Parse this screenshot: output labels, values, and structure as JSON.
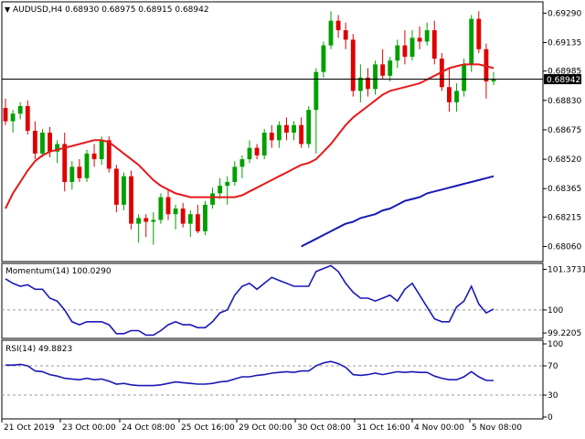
{
  "chart_data": [
    {
      "type": "candlestick",
      "title": "AUDUSD,H4  0.68930 0.68975 0.68915 0.68942",
      "symbol_arrow": "▼",
      "last_price_label": "0.68942",
      "last_price": 0.68942,
      "ylim": [
        0.6799,
        0.6934
      ],
      "yticks": [
        "0.69290",
        "0.69135",
        "0.68985",
        "0.68830",
        "0.68675",
        "0.68520",
        "0.68365",
        "0.68215",
        "0.68060"
      ],
      "colors": {
        "bull": "#00a000",
        "bear": "#e00000",
        "ma_fast": "#e41a1a",
        "ma_slow": "#1a1ab4",
        "last_price_line": "#000000"
      },
      "candles": [
        [
          0.6879,
          0.6884,
          0.687,
          0.6872
        ],
        [
          0.6872,
          0.6878,
          0.6866,
          0.6876
        ],
        [
          0.6876,
          0.6882,
          0.6873,
          0.688
        ],
        [
          0.688,
          0.6883,
          0.6865,
          0.6867
        ],
        [
          0.6867,
          0.6872,
          0.6852,
          0.6855
        ],
        [
          0.6855,
          0.6868,
          0.6853,
          0.6866
        ],
        [
          0.6866,
          0.6869,
          0.6853,
          0.6856
        ],
        [
          0.6856,
          0.6862,
          0.685,
          0.686
        ],
        [
          0.686,
          0.6866,
          0.6835,
          0.684
        ],
        [
          0.684,
          0.6851,
          0.6836,
          0.6848
        ],
        [
          0.6848,
          0.6852,
          0.684,
          0.6842
        ],
        [
          0.6842,
          0.6857,
          0.684,
          0.6855
        ],
        [
          0.6855,
          0.686,
          0.6848,
          0.6852
        ],
        [
          0.6852,
          0.6864,
          0.6849,
          0.6862
        ],
        [
          0.6862,
          0.6864,
          0.6845,
          0.6847
        ],
        [
          0.6847,
          0.6849,
          0.6824,
          0.6828
        ],
        [
          0.6828,
          0.6845,
          0.6825,
          0.6843
        ],
        [
          0.6843,
          0.6846,
          0.6815,
          0.6818
        ],
        [
          0.6818,
          0.6823,
          0.6808,
          0.6821
        ],
        [
          0.6821,
          0.6823,
          0.6811,
          0.6819
        ],
        [
          0.6819,
          0.6824,
          0.6807,
          0.682
        ],
        [
          0.682,
          0.6834,
          0.6818,
          0.6832
        ],
        [
          0.6832,
          0.6836,
          0.682,
          0.6823
        ],
        [
          0.6823,
          0.6828,
          0.6815,
          0.6826
        ],
        [
          0.6826,
          0.6829,
          0.6816,
          0.6818
        ],
        [
          0.6818,
          0.6825,
          0.6811,
          0.6823
        ],
        [
          0.6823,
          0.6828,
          0.6813,
          0.6814
        ],
        [
          0.6814,
          0.683,
          0.6812,
          0.6828
        ],
        [
          0.6828,
          0.6837,
          0.6826,
          0.6834
        ],
        [
          0.6834,
          0.6842,
          0.6831,
          0.6838
        ],
        [
          0.6838,
          0.6843,
          0.6828,
          0.684
        ],
        [
          0.684,
          0.6851,
          0.6838,
          0.6848
        ],
        [
          0.6848,
          0.6854,
          0.6842,
          0.6852
        ],
        [
          0.6852,
          0.6862,
          0.685,
          0.6858
        ],
        [
          0.6858,
          0.686,
          0.6852,
          0.6854
        ],
        [
          0.6854,
          0.6868,
          0.6852,
          0.6866
        ],
        [
          0.6866,
          0.687,
          0.6858,
          0.6862
        ],
        [
          0.6862,
          0.6872,
          0.6858,
          0.687
        ],
        [
          0.687,
          0.6874,
          0.6862,
          0.6866
        ],
        [
          0.6866,
          0.6872,
          0.6862,
          0.687
        ],
        [
          0.687,
          0.6874,
          0.6858,
          0.686
        ],
        [
          0.686,
          0.688,
          0.6858,
          0.6878
        ],
        [
          0.6878,
          0.69,
          0.6855,
          0.6898
        ],
        [
          0.6898,
          0.6914,
          0.6895,
          0.6912
        ],
        [
          0.6912,
          0.693,
          0.691,
          0.6925
        ],
        [
          0.6925,
          0.6928,
          0.6916,
          0.692
        ],
        [
          0.692,
          0.6924,
          0.691,
          0.6915
        ],
        [
          0.6915,
          0.6918,
          0.6885,
          0.6888
        ],
        [
          0.6888,
          0.6902,
          0.6882,
          0.6895
        ],
        [
          0.6895,
          0.69,
          0.6885,
          0.6889
        ],
        [
          0.6889,
          0.6904,
          0.6886,
          0.6902
        ],
        [
          0.6902,
          0.691,
          0.6894,
          0.6896
        ],
        [
          0.6896,
          0.6906,
          0.6893,
          0.6904
        ],
        [
          0.6904,
          0.6915,
          0.69,
          0.6912
        ],
        [
          0.6912,
          0.692,
          0.6902,
          0.6906
        ],
        [
          0.6906,
          0.692,
          0.6904,
          0.6916
        ],
        [
          0.6916,
          0.6922,
          0.691,
          0.6914
        ],
        [
          0.6914,
          0.6924,
          0.6912,
          0.692
        ],
        [
          0.692,
          0.6925,
          0.6902,
          0.6905
        ],
        [
          0.6905,
          0.6908,
          0.6888,
          0.689
        ],
        [
          0.689,
          0.69,
          0.6877,
          0.6882
        ],
        [
          0.6882,
          0.6892,
          0.6877,
          0.6888
        ],
        [
          0.6888,
          0.6905,
          0.6885,
          0.6902
        ],
        [
          0.6902,
          0.6928,
          0.6898,
          0.6926
        ],
        [
          0.6926,
          0.693,
          0.6908,
          0.691
        ],
        [
          0.691,
          0.6913,
          0.6884,
          0.6893
        ],
        [
          0.6893,
          0.6898,
          0.6891,
          0.6894
        ]
      ],
      "ma_fast": [
        0.6826,
        0.6834,
        0.684,
        0.6846,
        0.6851,
        0.6854,
        0.6856,
        0.6857,
        0.6858,
        0.6859,
        0.686,
        0.6861,
        0.6862,
        0.6862,
        0.6861,
        0.6858,
        0.6855,
        0.6852,
        0.6849,
        0.6845,
        0.6841,
        0.6838,
        0.6836,
        0.6834,
        0.6833,
        0.6832,
        0.6832,
        0.6832,
        0.6832,
        0.6832,
        0.6832,
        0.6832,
        0.6833,
        0.6835,
        0.6837,
        0.6839,
        0.6841,
        0.6843,
        0.6845,
        0.6847,
        0.6849,
        0.685,
        0.6852,
        0.6856,
        0.686,
        0.6865,
        0.687,
        0.6874,
        0.6877,
        0.688,
        0.6883,
        0.6886,
        0.6888,
        0.6889,
        0.689,
        0.6891,
        0.6892,
        0.6894,
        0.6896,
        0.6898,
        0.69,
        0.6901,
        0.6902,
        0.6902,
        0.6902,
        0.6901,
        0.69
      ],
      "ma_slow": [
        null,
        null,
        null,
        null,
        null,
        null,
        null,
        null,
        null,
        null,
        null,
        null,
        null,
        null,
        null,
        null,
        null,
        null,
        null,
        null,
        null,
        null,
        null,
        null,
        null,
        null,
        null,
        null,
        null,
        null,
        null,
        null,
        null,
        null,
        null,
        null,
        null,
        null,
        null,
        null,
        0.6806,
        0.6808,
        0.681,
        0.6812,
        0.6814,
        0.6816,
        0.6818,
        0.6819,
        0.6821,
        0.6822,
        0.6823,
        0.6825,
        0.6826,
        0.6828,
        0.683,
        0.6831,
        0.6832,
        0.6834,
        0.6835,
        0.6836,
        0.6837,
        0.6838,
        0.6839,
        0.684,
        0.6841,
        0.6842,
        0.6843
      ]
    },
    {
      "type": "line",
      "title": "Momentum(14) 100.0290",
      "ylim": [
        99.1,
        101.45
      ],
      "yticks": [
        "101.3731",
        "100",
        "99.2205"
      ],
      "reference_line": 100,
      "color": "#1a1ab4",
      "values": [
        101.05,
        100.9,
        100.8,
        100.85,
        100.7,
        100.7,
        100.4,
        100.3,
        100.0,
        99.6,
        99.5,
        99.6,
        99.6,
        99.6,
        99.5,
        99.2,
        99.2,
        99.3,
        99.3,
        99.15,
        99.15,
        99.3,
        99.5,
        99.6,
        99.5,
        99.5,
        99.4,
        99.4,
        99.6,
        99.9,
        100.0,
        100.5,
        100.8,
        100.9,
        100.7,
        100.9,
        101.1,
        101.0,
        100.9,
        100.8,
        100.8,
        100.8,
        101.3,
        101.4,
        101.5,
        101.3,
        100.9,
        100.6,
        100.4,
        100.4,
        100.3,
        100.4,
        100.5,
        100.3,
        100.7,
        100.9,
        100.5,
        100.1,
        99.7,
        99.6,
        99.6,
        100.1,
        100.3,
        100.8,
        100.2,
        99.9,
        100.03
      ]
    },
    {
      "type": "line",
      "title": "RSI(14) 49.8823",
      "ylim": [
        0,
        100
      ],
      "yticks": [
        "100",
        "70",
        "30",
        "0"
      ],
      "reference_lines": [
        70,
        30
      ],
      "color": "#1a1ab4",
      "values": [
        71,
        71,
        72,
        70,
        63,
        62,
        58,
        56,
        53,
        52,
        51,
        53,
        51,
        52,
        49,
        45,
        46,
        44,
        43,
        43,
        43,
        44,
        46,
        48,
        47,
        46,
        45,
        45,
        46,
        48,
        49,
        52,
        55,
        55,
        57,
        58,
        60,
        61,
        62,
        61,
        63,
        63,
        70,
        74,
        76,
        73,
        68,
        58,
        57,
        58,
        60,
        58,
        60,
        62,
        61,
        62,
        61,
        61,
        56,
        53,
        51,
        51,
        55,
        62,
        55,
        50,
        50
      ]
    }
  ],
  "x_axis_labels": [
    "21 Oct 2019",
    "23 Oct 00:00",
    "24 Oct 08:00",
    "25 Oct 16:00",
    "29 Oct 00:00",
    "30 Oct 08:00",
    "31 Oct 16:00",
    "4 Nov 00:00",
    "5 Nov 08:00"
  ]
}
